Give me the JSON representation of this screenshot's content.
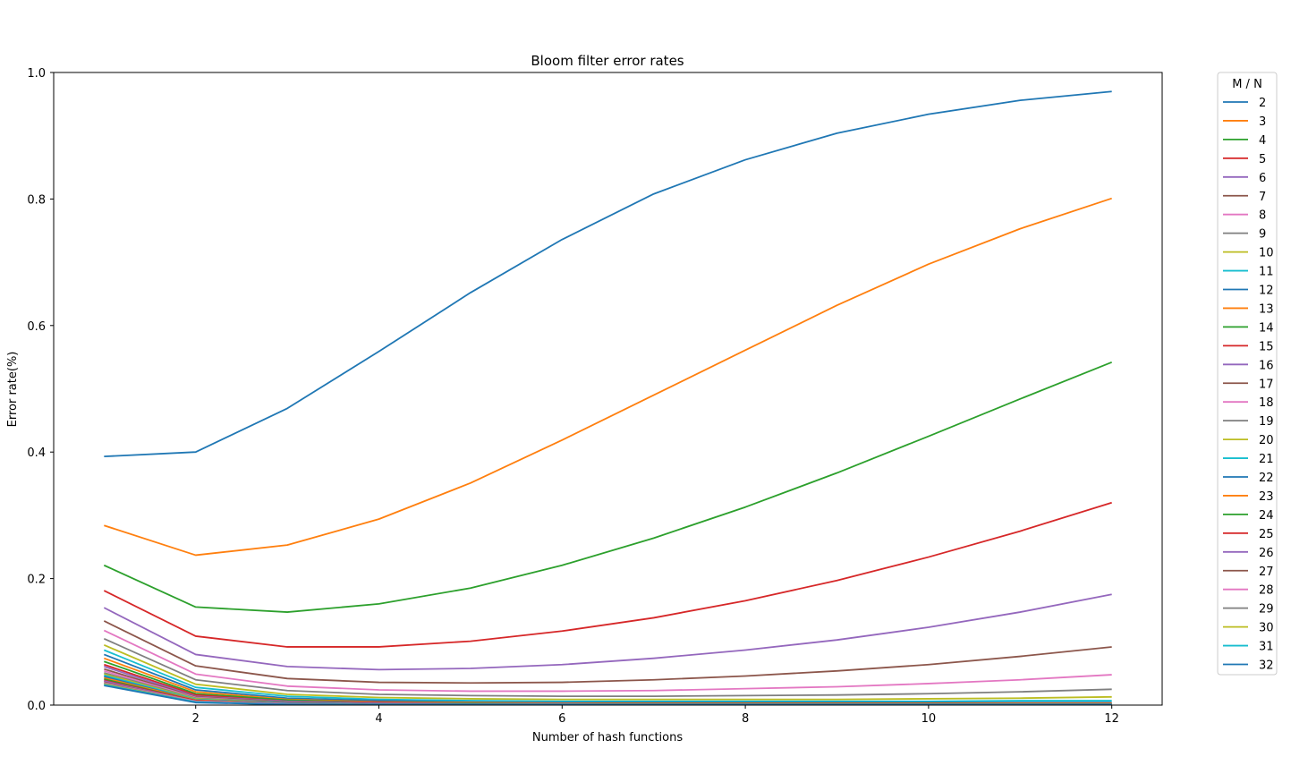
{
  "chart_data": {
    "type": "line",
    "title": "Bloom filter error rates",
    "xlabel": "Number of hash functions",
    "ylabel": "Error rate(%)",
    "x": [
      1,
      2,
      3,
      4,
      5,
      6,
      7,
      8,
      9,
      10,
      11,
      12
    ],
    "xlim": [
      0.45,
      12.55
    ],
    "ylim": [
      0,
      1.0
    ],
    "xticks": [
      2,
      4,
      6,
      8,
      10,
      12
    ],
    "yticks": [
      "0.0",
      "0.2",
      "0.4",
      "0.6",
      "0.8",
      "1.0"
    ],
    "grid": false,
    "legend": {
      "title": "M / N",
      "placement": "outside-right"
    },
    "colors": [
      "#1f77b4",
      "#ff7f0e",
      "#2ca02c",
      "#d62728",
      "#9467bd",
      "#8c564b",
      "#e377c2",
      "#7f7f7f",
      "#bcbd22",
      "#17becf"
    ],
    "series": [
      {
        "name": "2",
        "values": [
          0.393,
          0.4,
          0.469,
          0.559,
          0.652,
          0.736,
          0.808,
          0.862,
          0.904,
          0.934,
          0.956,
          0.97
        ]
      },
      {
        "name": "3",
        "values": [
          0.284,
          0.237,
          0.253,
          0.294,
          0.351,
          0.419,
          0.49,
          0.561,
          0.632,
          0.697,
          0.753,
          0.801
        ]
      },
      {
        "name": "4",
        "values": [
          0.221,
          0.155,
          0.147,
          0.16,
          0.185,
          0.221,
          0.264,
          0.313,
          0.367,
          0.425,
          0.484,
          0.542
        ]
      },
      {
        "name": "5",
        "values": [
          0.181,
          0.109,
          0.092,
          0.092,
          0.101,
          0.117,
          0.138,
          0.165,
          0.197,
          0.234,
          0.275,
          0.32
        ]
      },
      {
        "name": "6",
        "values": [
          0.154,
          0.08,
          0.061,
          0.056,
          0.058,
          0.064,
          0.074,
          0.087,
          0.103,
          0.123,
          0.147,
          0.175
        ]
      },
      {
        "name": "7",
        "values": [
          0.133,
          0.062,
          0.042,
          0.036,
          0.035,
          0.036,
          0.04,
          0.046,
          0.054,
          0.064,
          0.077,
          0.092
        ]
      },
      {
        "name": "8",
        "values": [
          0.118,
          0.049,
          0.03,
          0.024,
          0.022,
          0.022,
          0.023,
          0.026,
          0.029,
          0.034,
          0.04,
          0.048
        ]
      },
      {
        "name": "9",
        "values": [
          0.105,
          0.04,
          0.023,
          0.017,
          0.015,
          0.014,
          0.014,
          0.015,
          0.016,
          0.018,
          0.021,
          0.025
        ]
      },
      {
        "name": "10",
        "values": [
          0.095,
          0.033,
          0.017,
          0.012,
          0.01,
          0.009,
          0.009,
          0.009,
          0.009,
          0.01,
          0.011,
          0.013
        ]
      },
      {
        "name": "11",
        "values": [
          0.087,
          0.028,
          0.014,
          0.009,
          0.007,
          0.006,
          0.006,
          0.006,
          0.006,
          0.006,
          0.007,
          0.007
        ]
      },
      {
        "name": "12",
        "values": [
          0.08,
          0.024,
          0.011,
          0.007,
          0.005,
          0.004,
          0.004,
          0.004,
          0.004,
          0.004,
          0.004,
          0.004
        ]
      },
      {
        "name": "13",
        "values": [
          0.074,
          0.021,
          0.009,
          0.005,
          0.004,
          0.003,
          0.003,
          0.003,
          0.003,
          0.003,
          0.003,
          0.003
        ]
      },
      {
        "name": "14",
        "values": [
          0.069,
          0.018,
          0.008,
          0.004,
          0.003,
          0.002,
          0.002,
          0.002,
          0.002,
          0.002,
          0.002,
          0.002
        ]
      },
      {
        "name": "15",
        "values": [
          0.064,
          0.016,
          0.006,
          0.004,
          0.002,
          0.002,
          0.002,
          0.002,
          0.002,
          0.002,
          0.002,
          0.002
        ]
      },
      {
        "name": "16",
        "values": [
          0.061,
          0.014,
          0.006,
          0.003,
          0.002,
          0.002,
          0.001,
          0.001,
          0.001,
          0.001,
          0.001,
          0.001
        ]
      },
      {
        "name": "17",
        "values": [
          0.057,
          0.013,
          0.005,
          0.002,
          0.001,
          0.001,
          0.001,
          0.001,
          0.001,
          0.001,
          0.001,
          0.001
        ]
      },
      {
        "name": "18",
        "values": [
          0.054,
          0.012,
          0.004,
          0.002,
          0.001,
          0.001,
          0.001,
          0.001,
          0.001,
          0.001,
          0.001,
          0.001
        ]
      },
      {
        "name": "19",
        "values": [
          0.051,
          0.011,
          0.004,
          0.002,
          0.001,
          0.001,
          0.001,
          0.001,
          0.001,
          0.001,
          0.001,
          0.001
        ]
      },
      {
        "name": "20",
        "values": [
          0.049,
          0.01,
          0.003,
          0.001,
          0.001,
          0.001,
          0.001,
          0.001,
          0.001,
          0.001,
          0.001,
          0.001
        ]
      },
      {
        "name": "21",
        "values": [
          0.047,
          0.009,
          0.003,
          0.001,
          0.001,
          0.001,
          0.001,
          0.001,
          0.001,
          0.001,
          0.001,
          0.001
        ]
      },
      {
        "name": "22",
        "values": [
          0.045,
          0.008,
          0.003,
          0.001,
          0.001,
          0.001,
          0.001,
          0.001,
          0.001,
          0.001,
          0.001,
          0.001
        ]
      },
      {
        "name": "23",
        "values": [
          0.043,
          0.008,
          0.002,
          0.001,
          0.001,
          0.001,
          0.001,
          0.001,
          0.001,
          0.001,
          0.001,
          0.001
        ]
      },
      {
        "name": "24",
        "values": [
          0.041,
          0.007,
          0.002,
          0.001,
          0.001,
          0.001,
          0.001,
          0.001,
          0.001,
          0.001,
          0.001,
          0.001
        ]
      },
      {
        "name": "25",
        "values": [
          0.039,
          0.007,
          0.002,
          0.001,
          0.001,
          0.001,
          0.001,
          0.001,
          0.001,
          0.001,
          0.001,
          0.001
        ]
      },
      {
        "name": "26",
        "values": [
          0.038,
          0.006,
          0.002,
          0.001,
          0.001,
          0.001,
          0.001,
          0.001,
          0.001,
          0.001,
          0.001,
          0.001
        ]
      },
      {
        "name": "27",
        "values": [
          0.036,
          0.006,
          0.002,
          0.001,
          0.001,
          0.001,
          0.001,
          0.001,
          0.001,
          0.001,
          0.001,
          0.001
        ]
      },
      {
        "name": "28",
        "values": [
          0.035,
          0.006,
          0.002,
          0.001,
          0.001,
          0.001,
          0.001,
          0.001,
          0.001,
          0.001,
          0.001,
          0.001
        ]
      },
      {
        "name": "29",
        "values": [
          0.034,
          0.005,
          0.001,
          0.001,
          0.001,
          0.001,
          0.001,
          0.001,
          0.001,
          0.001,
          0.001,
          0.001
        ]
      },
      {
        "name": "30",
        "values": [
          0.033,
          0.005,
          0.001,
          0.001,
          0.001,
          0.001,
          0.001,
          0.001,
          0.001,
          0.001,
          0.001,
          0.001
        ]
      },
      {
        "name": "31",
        "values": [
          0.032,
          0.005,
          0.001,
          0.001,
          0.001,
          0.001,
          0.001,
          0.001,
          0.001,
          0.001,
          0.001,
          0.001
        ]
      },
      {
        "name": "32",
        "values": [
          0.031,
          0.004,
          0.001,
          0.001,
          0.001,
          0.001,
          0.001,
          0.001,
          0.001,
          0.001,
          0.001,
          0.001
        ]
      }
    ]
  }
}
